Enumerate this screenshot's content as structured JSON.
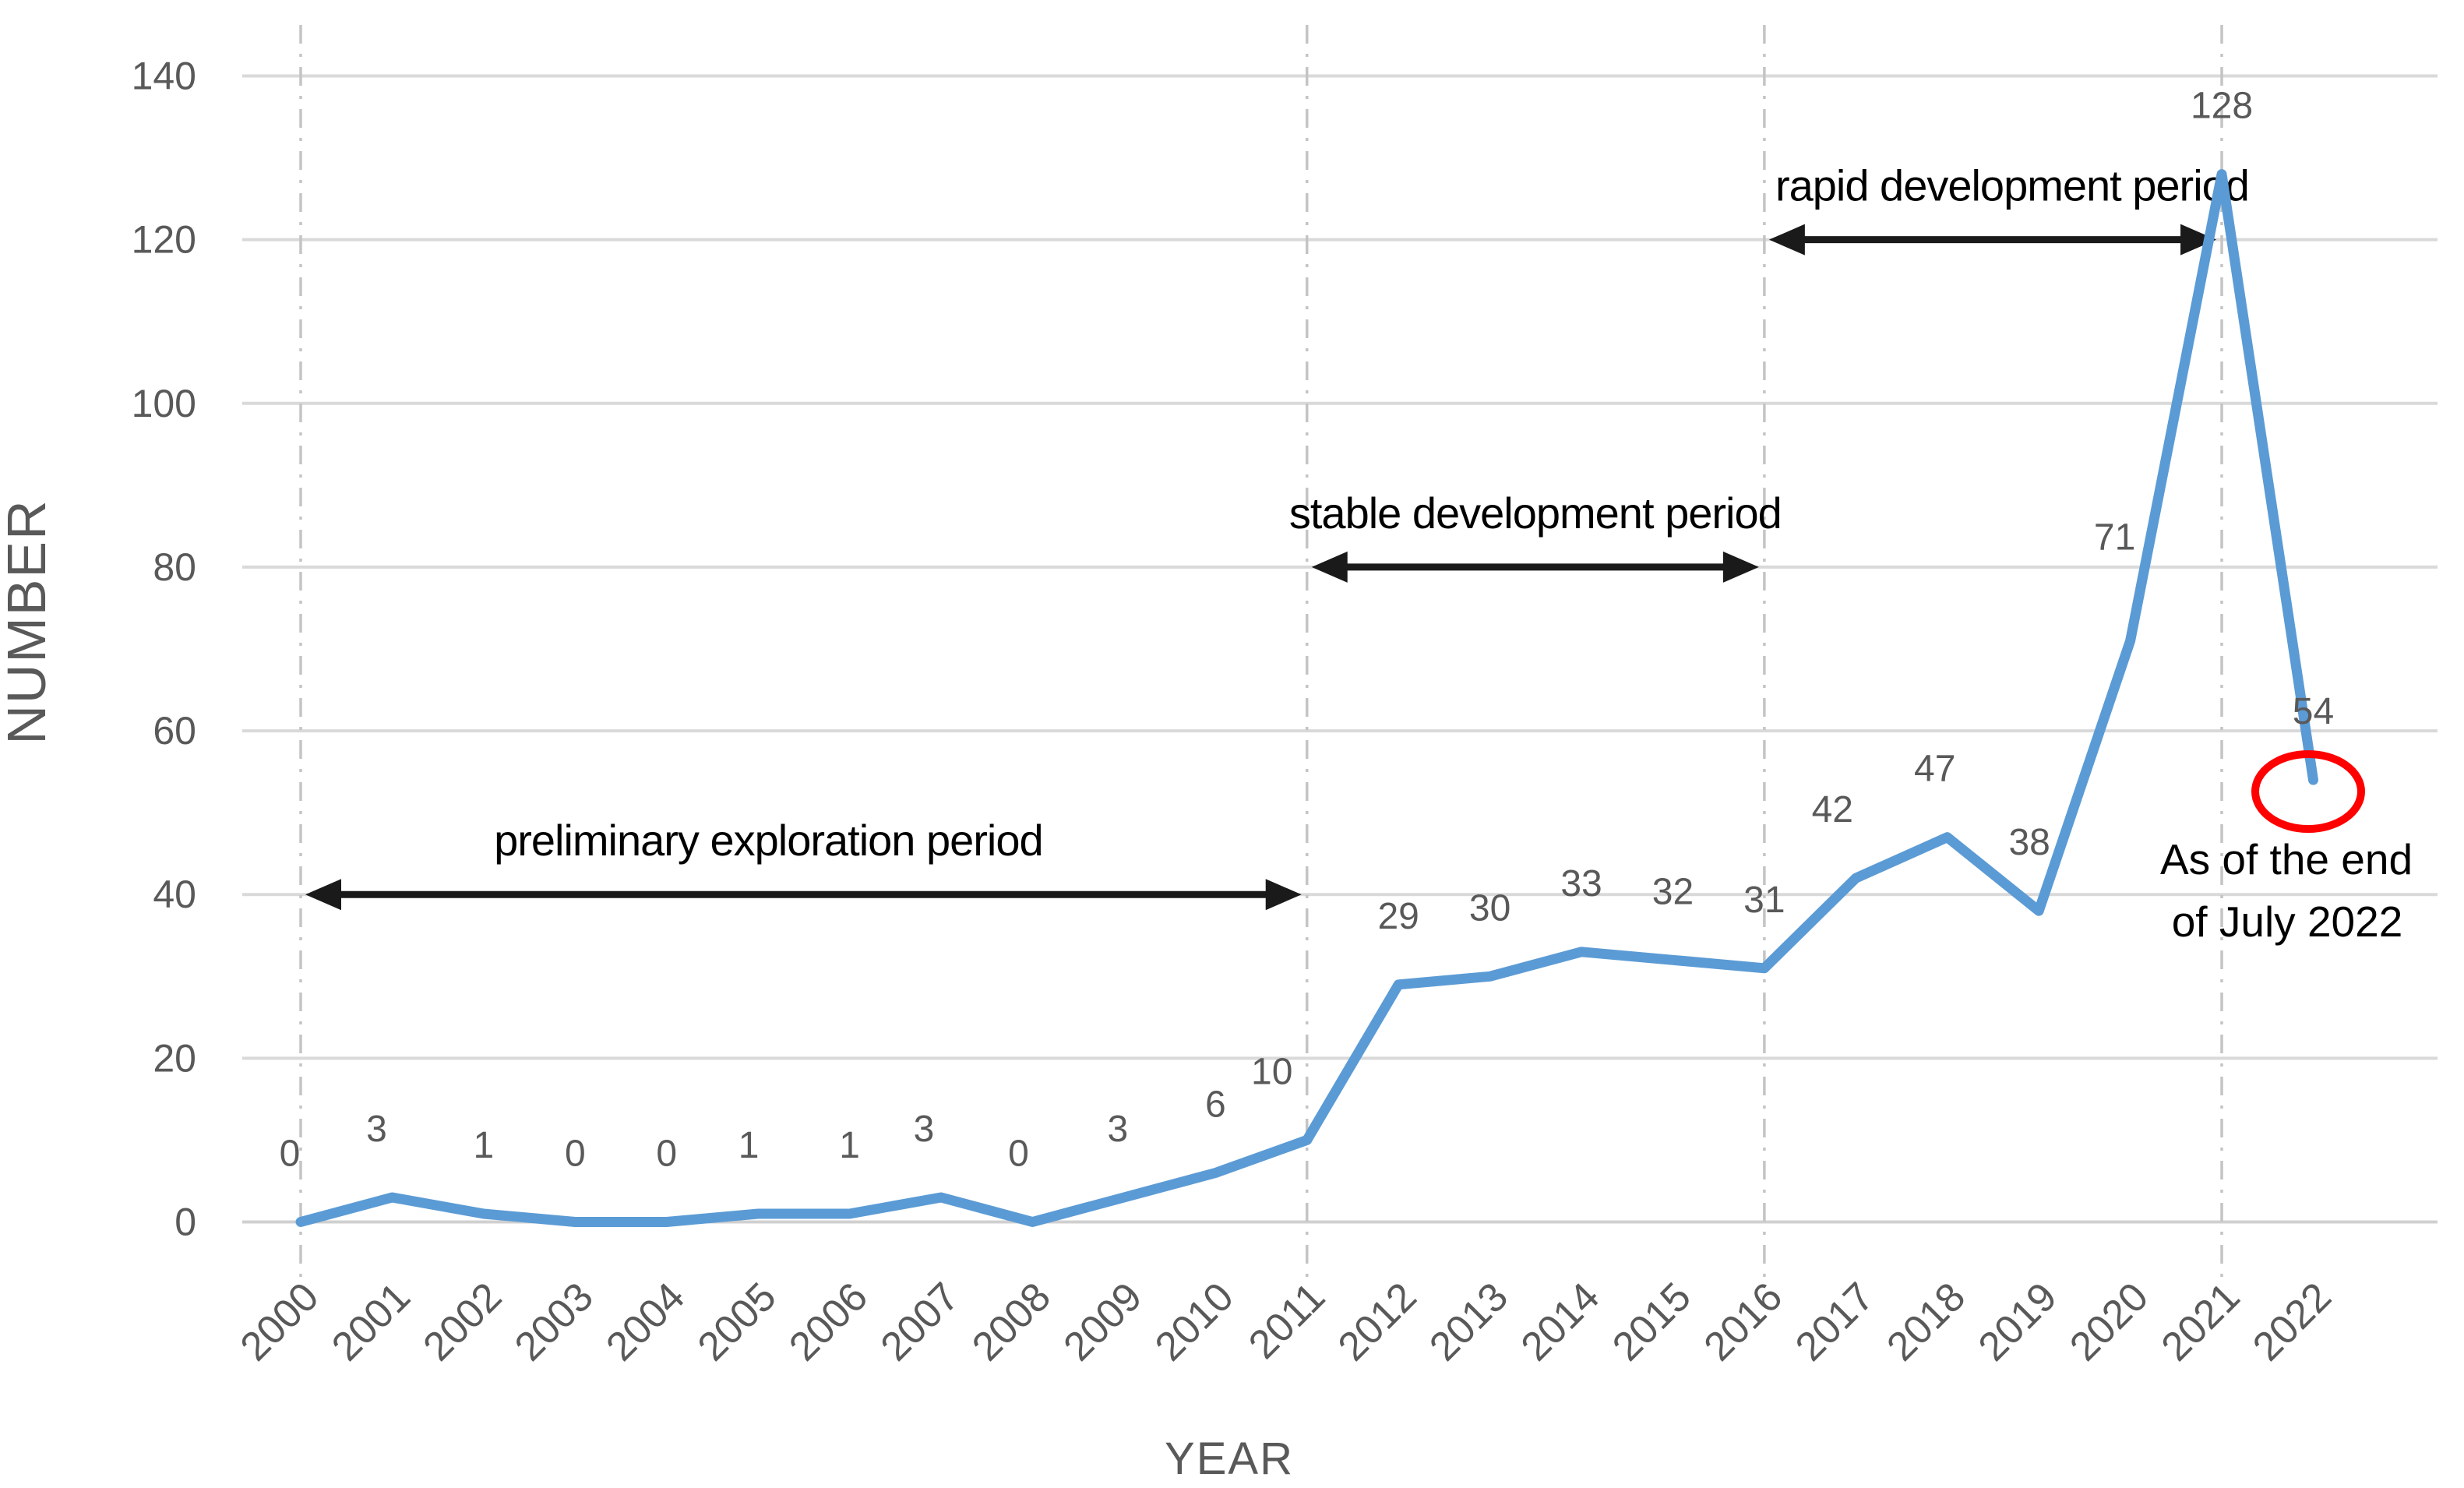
{
  "chart_data": {
    "type": "line",
    "title": "",
    "xlabel": "YEAR",
    "ylabel": "NUMBER",
    "x": [
      2000,
      2001,
      2002,
      2003,
      2004,
      2005,
      2006,
      2007,
      2008,
      2009,
      2010,
      2011,
      2012,
      2013,
      2014,
      2015,
      2016,
      2017,
      2018,
      2019,
      2020,
      2021,
      2022
    ],
    "values": [
      0,
      3,
      1,
      0,
      0,
      1,
      1,
      3,
      0,
      3,
      6,
      10,
      29,
      30,
      33,
      32,
      31,
      42,
      47,
      38,
      71,
      128,
      54
    ],
    "show_data_labels": true,
    "ylim": [
      0,
      140
    ],
    "yticks": [
      0,
      20,
      40,
      60,
      80,
      100,
      120,
      140
    ],
    "grid": "horizontal",
    "legend": "none",
    "reference_years": [
      2000,
      2011,
      2016,
      2021
    ],
    "annotations": {
      "periods": [
        {
          "label": "preliminary exploration period",
          "from": 2000,
          "to": 2011,
          "at_value": 40
        },
        {
          "label": "stable development period",
          "from": 2011,
          "to": 2016,
          "at_value": 80
        },
        {
          "label": "rapid development period",
          "from": 2016,
          "to": 2021,
          "at_value": 120
        }
      ],
      "callout": {
        "lines": [
          "As of the end",
          "of July 2022"
        ],
        "year": 2022,
        "value": 54
      }
    },
    "colors": {
      "line": "#5B9BD5",
      "gridline": "#D9D9D9",
      "axis_line": "#D0D0D0",
      "dash_line": "#C4C4C4",
      "tick": "#595959",
      "data_label": "#595959",
      "annotation": "#000000",
      "arrow": "#1a1a1a",
      "circle": "#FF0000"
    }
  }
}
